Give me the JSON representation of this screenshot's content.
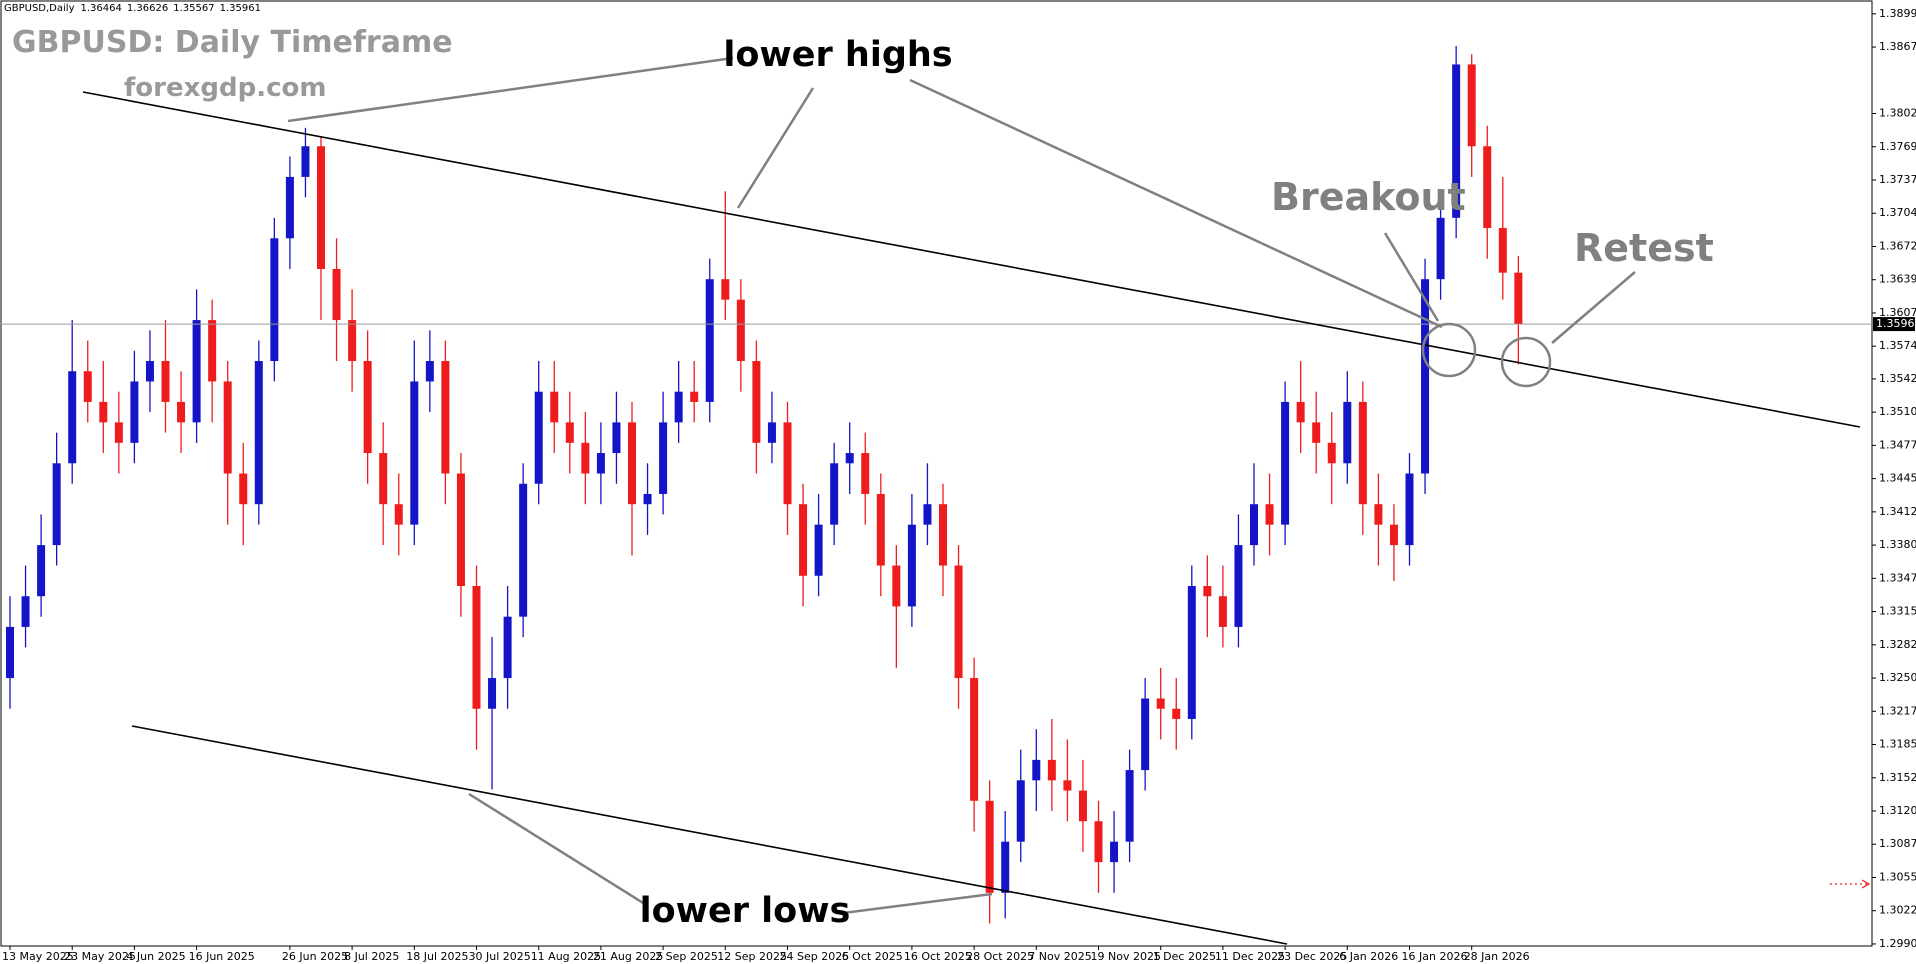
{
  "chart_data": {
    "type": "candlestick",
    "header": "GBPUSD,Daily",
    "title": "GBPUSD: Daily Timeframe",
    "subtitle": "forexgdp.com",
    "annotations": [
      "lower highs",
      "lower lows",
      "Breakout",
      "Retest"
    ],
    "up_color": "#1515c8",
    "down_color": "#ee1c1c",
    "ylim": [
      1.2988,
      1.3913
    ],
    "yticks": [
      1.38995,
      1.3867,
      {
        "value": 1.3802,
        "label": "1.38020"
      },
      1.37695,
      1.3737,
      1.37045,
      1.3672,
      1.36395,
      {
        "value": 1.3607,
        "label": "1.36070"
      },
      1.35745,
      1.35425,
      {
        "value": 1.351,
        "label": "1.35100"
      },
      1.34775,
      {
        "value": 1.3445,
        "label": "1.34450"
      },
      1.34125,
      {
        "value": 1.338,
        "label": "1.33800"
      },
      1.33475,
      {
        "value": 1.3315,
        "label": "1.33150"
      },
      1.32825,
      {
        "value": 1.325,
        "label": "1.32500"
      },
      1.32175,
      {
        "value": 1.3185,
        "label": "1.31850"
      },
      1.31525,
      {
        "value": 1.312,
        "label": "1.31200"
      },
      1.30875,
      {
        "value": 1.3055,
        "label": "1.30550"
      },
      1.30225,
      {
        "value": 1.299,
        "label": "1.29900"
      }
    ],
    "categories": [
      "13 May 2025",
      null,
      null,
      null,
      "23 May 2025",
      null,
      null,
      null,
      "4 Jun 2025",
      null,
      null,
      null,
      "16 Jun 2025",
      null,
      null,
      null,
      null,
      null,
      "26 Jun 2025",
      null,
      null,
      null,
      "8 Jul 2025",
      null,
      null,
      null,
      "18 Jul 2025",
      null,
      null,
      null,
      "30 Jul 2025",
      null,
      null,
      null,
      "11 Aug 2025",
      null,
      null,
      null,
      "21 Aug 2025",
      null,
      null,
      null,
      "2 Sep 2025",
      null,
      null,
      null,
      "12 Sep 2025",
      null,
      null,
      null,
      "24 Sep 2025",
      null,
      null,
      null,
      "6 Oct 2025",
      null,
      null,
      null,
      "16 Oct 2025",
      null,
      null,
      null,
      "28 Oct 2025",
      null,
      null,
      null,
      "7 Nov 2025",
      null,
      null,
      null,
      "19 Nov 2025",
      null,
      null,
      null,
      "1 Dec 2025",
      null,
      null,
      null,
      "11 Dec 2025",
      null,
      null,
      null,
      "23 Dec 2025",
      null,
      null,
      null,
      "6 Jan 2026",
      null,
      null,
      null,
      "16 Jan 2026",
      null,
      null,
      null,
      "28 Jan 2026",
      null,
      null,
      null
    ],
    "open": [
      1.325,
      1.33,
      1.333,
      1.338,
      1.346,
      1.355,
      1.352,
      1.35,
      1.348,
      1.354,
      1.356,
      1.352,
      1.35,
      1.36,
      1.354,
      1.345,
      1.342,
      1.356,
      1.368,
      1.374,
      1.377,
      1.365,
      1.36,
      1.356,
      1.347,
      1.342,
      1.34,
      1.354,
      1.356,
      1.345,
      1.334,
      1.322,
      1.325,
      1.331,
      1.344,
      1.353,
      1.35,
      1.348,
      1.345,
      1.347,
      1.35,
      1.342,
      1.343,
      1.35,
      1.353,
      1.352,
      1.364,
      1.362,
      1.356,
      1.348,
      1.35,
      1.342,
      1.335,
      1.34,
      1.346,
      1.347,
      1.343,
      1.336,
      1.332,
      1.34,
      1.342,
      1.336,
      1.325,
      1.313,
      1.304,
      1.309,
      1.315,
      1.317,
      1.315,
      1.314,
      1.311,
      1.307,
      1.309,
      1.316,
      1.323,
      1.322,
      1.321,
      1.334,
      1.333,
      1.33,
      1.338,
      1.342,
      1.34,
      1.352,
      1.35,
      1.348,
      1.346,
      1.352,
      1.342,
      1.34,
      1.338,
      1.345,
      1.364,
      1.37,
      1.385,
      1.377,
      1.369,
      1.36464
    ],
    "high": [
      1.333,
      1.336,
      1.341,
      1.349,
      1.36,
      1.358,
      1.356,
      1.353,
      1.357,
      1.359,
      1.36,
      1.355,
      1.363,
      1.362,
      1.356,
      1.348,
      1.358,
      1.37,
      1.376,
      1.3788,
      1.378,
      1.368,
      1.363,
      1.359,
      1.35,
      1.345,
      1.358,
      1.359,
      1.358,
      1.347,
      1.336,
      1.329,
      1.334,
      1.346,
      1.356,
      1.356,
      1.353,
      1.351,
      1.35,
      1.353,
      1.352,
      1.346,
      1.353,
      1.356,
      1.356,
      1.366,
      1.3726,
      1.364,
      1.358,
      1.353,
      1.352,
      1.344,
      1.343,
      1.348,
      1.35,
      1.349,
      1.345,
      1.338,
      1.343,
      1.346,
      1.344,
      1.338,
      1.327,
      1.315,
      1.312,
      1.318,
      1.32,
      1.321,
      1.319,
      1.317,
      1.313,
      1.312,
      1.318,
      1.325,
      1.326,
      1.325,
      1.336,
      1.337,
      1.336,
      1.341,
      1.346,
      1.345,
      1.354,
      1.356,
      1.353,
      1.351,
      1.355,
      1.354,
      1.345,
      1.342,
      1.347,
      1.366,
      1.372,
      1.3868,
      1.386,
      1.379,
      1.374,
      1.36626
    ],
    "low": [
      1.322,
      1.328,
      1.331,
      1.336,
      1.344,
      1.35,
      1.347,
      1.345,
      1.346,
      1.351,
      1.349,
      1.347,
      1.348,
      1.35,
      1.34,
      1.338,
      1.34,
      1.354,
      1.365,
      1.372,
      1.36,
      1.356,
      1.353,
      1.344,
      1.338,
      1.337,
      1.338,
      1.351,
      1.342,
      1.331,
      1.318,
      1.3141,
      1.322,
      1.329,
      1.342,
      1.347,
      1.345,
      1.342,
      1.342,
      1.344,
      1.337,
      1.339,
      1.341,
      1.348,
      1.35,
      1.35,
      1.36,
      1.353,
      1.345,
      1.346,
      1.339,
      1.332,
      1.333,
      1.338,
      1.343,
      1.34,
      1.333,
      1.326,
      1.33,
      1.338,
      1.333,
      1.322,
      1.31,
      1.301,
      1.3015,
      1.307,
      1.312,
      1.312,
      1.311,
      1.308,
      1.304,
      1.304,
      1.307,
      1.314,
      1.319,
      1.318,
      1.319,
      1.329,
      1.328,
      1.328,
      1.336,
      1.337,
      1.338,
      1.347,
      1.345,
      1.342,
      1.344,
      1.339,
      1.336,
      1.3345,
      1.336,
      1.343,
      1.362,
      1.368,
      1.374,
      1.366,
      1.362,
      1.35567
    ],
    "close": [
      1.33,
      1.333,
      1.338,
      1.346,
      1.355,
      1.352,
      1.35,
      1.348,
      1.354,
      1.356,
      1.352,
      1.35,
      1.36,
      1.354,
      1.345,
      1.342,
      1.356,
      1.368,
      1.374,
      1.377,
      1.365,
      1.36,
      1.356,
      1.347,
      1.342,
      1.34,
      1.354,
      1.356,
      1.345,
      1.334,
      1.322,
      1.325,
      1.331,
      1.344,
      1.353,
      1.35,
      1.348,
      1.345,
      1.347,
      1.35,
      1.342,
      1.343,
      1.35,
      1.353,
      1.352,
      1.364,
      1.362,
      1.356,
      1.348,
      1.35,
      1.342,
      1.335,
      1.34,
      1.346,
      1.347,
      1.343,
      1.336,
      1.332,
      1.34,
      1.342,
      1.336,
      1.325,
      1.313,
      1.304,
      1.309,
      1.315,
      1.317,
      1.315,
      1.314,
      1.311,
      1.307,
      1.309,
      1.316,
      1.323,
      1.322,
      1.321,
      1.334,
      1.333,
      1.33,
      1.338,
      1.342,
      1.34,
      1.352,
      1.35,
      1.348,
      1.346,
      1.352,
      1.342,
      1.34,
      1.338,
      1.345,
      1.364,
      1.37,
      1.385,
      1.377,
      1.369,
      1.36464,
      1.35961
    ]
  }
}
